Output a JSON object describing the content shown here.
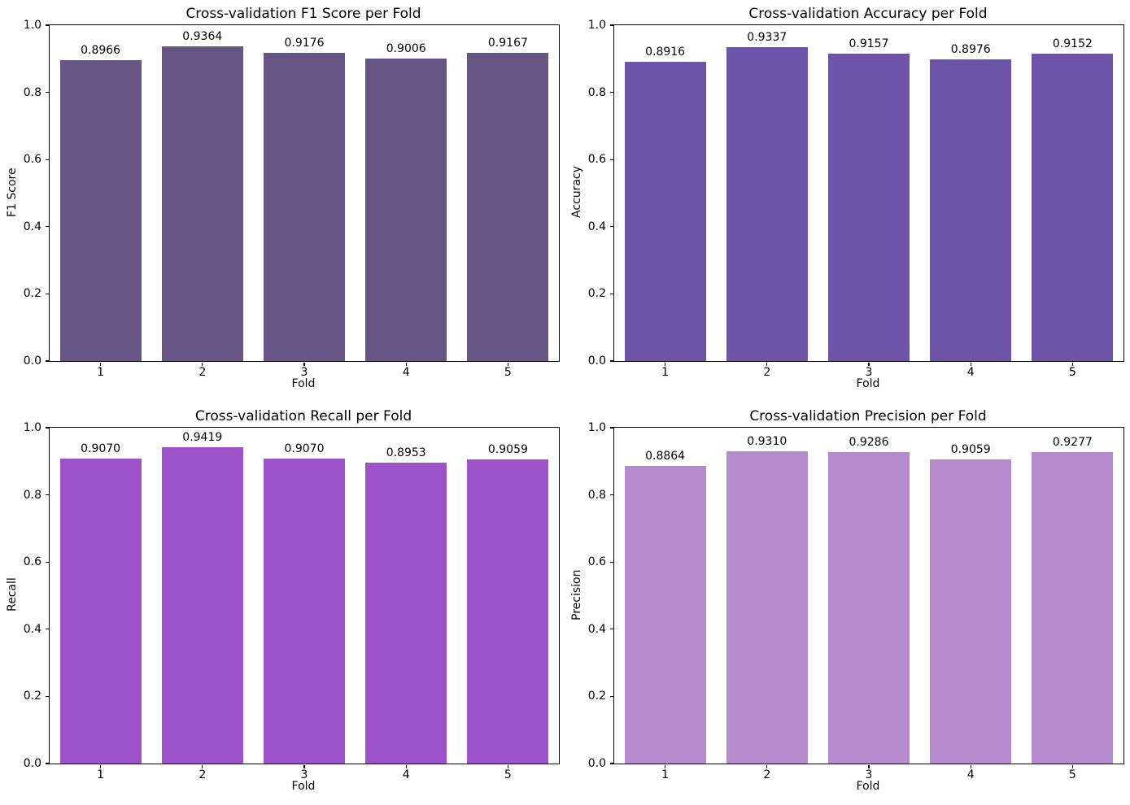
{
  "figure": {
    "background_color": "#ffffff",
    "text_color": "#000000",
    "layout": "2x2-subplot-grid"
  },
  "chart_data": [
    {
      "type": "bar",
      "title": "Cross-validation F1 Score per Fold",
      "xlabel": "Fold",
      "ylabel": "F1 Score",
      "categories": [
        "1",
        "2",
        "3",
        "4",
        "5"
      ],
      "values": [
        0.8966,
        0.9364,
        0.9176,
        0.9006,
        0.9167
      ],
      "value_labels": [
        "0.8966",
        "0.9364",
        "0.9176",
        "0.9006",
        "0.9167"
      ],
      "bar_color": "#675586",
      "ylim": [
        0.0,
        1.0
      ],
      "yticks": [
        "0.0",
        "0.2",
        "0.4",
        "0.6",
        "0.8",
        "1.0"
      ],
      "bar_width_fraction": 0.8,
      "grid": false,
      "legend": null
    },
    {
      "type": "bar",
      "title": "Cross-validation Accuracy per Fold",
      "xlabel": "Fold",
      "ylabel": "Accuracy",
      "categories": [
        "1",
        "2",
        "3",
        "4",
        "5"
      ],
      "values": [
        0.8916,
        0.9337,
        0.9157,
        0.8976,
        0.9152
      ],
      "value_labels": [
        "0.8916",
        "0.9337",
        "0.9157",
        "0.8976",
        "0.9152"
      ],
      "bar_color": "#6e54a8",
      "ylim": [
        0.0,
        1.0
      ],
      "yticks": [
        "0.0",
        "0.2",
        "0.4",
        "0.6",
        "0.8",
        "1.0"
      ],
      "bar_width_fraction": 0.8,
      "grid": false,
      "legend": null
    },
    {
      "type": "bar",
      "title": "Cross-validation Recall per Fold",
      "xlabel": "Fold",
      "ylabel": "Recall",
      "categories": [
        "1",
        "2",
        "3",
        "4",
        "5"
      ],
      "values": [
        0.907,
        0.9419,
        0.907,
        0.8953,
        0.9059
      ],
      "value_labels": [
        "0.9070",
        "0.9419",
        "0.9070",
        "0.8953",
        "0.9059"
      ],
      "bar_color": "#9c52c8",
      "ylim": [
        0.0,
        1.0
      ],
      "yticks": [
        "0.0",
        "0.2",
        "0.4",
        "0.6",
        "0.8",
        "1.0"
      ],
      "bar_width_fraction": 0.8,
      "grid": false,
      "legend": null
    },
    {
      "type": "bar",
      "title": "Cross-validation Precision per Fold",
      "xlabel": "Fold",
      "ylabel": "Precision",
      "categories": [
        "1",
        "2",
        "3",
        "4",
        "5"
      ],
      "values": [
        0.8864,
        0.931,
        0.9286,
        0.9059,
        0.9277
      ],
      "value_labels": [
        "0.8864",
        "0.9310",
        "0.9286",
        "0.9059",
        "0.9277"
      ],
      "bar_color": "#b58bce",
      "ylim": [
        0.0,
        1.0
      ],
      "yticks": [
        "0.0",
        "0.2",
        "0.4",
        "0.6",
        "0.8",
        "1.0"
      ],
      "bar_width_fraction": 0.8,
      "grid": false,
      "legend": null
    }
  ]
}
